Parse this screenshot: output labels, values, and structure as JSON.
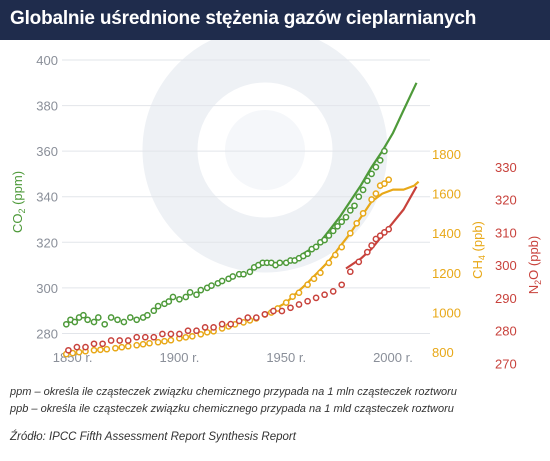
{
  "title": "Globalnie uśrednione stężenia gazów cieplarnianych",
  "notes": {
    "ppm": "ppm – określa ile cząsteczek związku chemicznego przypada na 1 mln cząsteczek roztworu",
    "ppb": "ppb – określa ile cząsteczek związku chemicznego przypada na 1 mld cząsteczek roztworu"
  },
  "source": "Źródło: IPCC Fifth Assessment Report Synthesis Report",
  "colors": {
    "co2": "#4e9a3a",
    "ch4": "#e8a818",
    "n2o": "#c8423c",
    "title_bg": "#1f2c4c"
  },
  "chart_data": {
    "type": "scatter",
    "title": "Globalnie uśrednione stężenia gazów cieplarnianych",
    "x_ticks": [
      "1850 r.",
      "1900 r.",
      "1950 r.",
      "2000 r."
    ],
    "x_tick_values": [
      1850,
      1900,
      1950,
      2000
    ],
    "xlim": [
      1845,
      2015
    ],
    "axes": {
      "co2": {
        "label_main": "CO",
        "label_sub": "2",
        "label_unit": " (ppm)",
        "ylim": [
          278,
          400
        ],
        "ticks": [
          280,
          300,
          320,
          340,
          360,
          380,
          400
        ],
        "side": "left"
      },
      "ch4": {
        "label_main": "CH",
        "label_sub": "4",
        "label_unit": " (ppb)",
        "ylim": [
          720,
          1850
        ],
        "ticks": [
          800,
          1000,
          1200,
          1400,
          1600,
          1800
        ],
        "side": "right"
      },
      "n2o": {
        "label_main": "N",
        "label_sub": "2",
        "label_mid": "O",
        "label_unit": " (ppb)",
        "ylim": [
          268,
          337
        ],
        "ticks": [
          270,
          280,
          290,
          300,
          310,
          320,
          330
        ],
        "side": "right"
      }
    },
    "series": [
      {
        "key": "co2",
        "points": [
          [
            1847,
            284
          ],
          [
            1849,
            286
          ],
          [
            1851,
            285
          ],
          [
            1853,
            287
          ],
          [
            1855,
            288
          ],
          [
            1857,
            286
          ],
          [
            1860,
            285
          ],
          [
            1862,
            287
          ],
          [
            1865,
            284
          ],
          [
            1868,
            287
          ],
          [
            1871,
            286
          ],
          [
            1874,
            285
          ],
          [
            1877,
            287
          ],
          [
            1880,
            286
          ],
          [
            1883,
            287
          ],
          [
            1885,
            288
          ],
          [
            1888,
            290
          ],
          [
            1890,
            292
          ],
          [
            1893,
            293
          ],
          [
            1895,
            294
          ],
          [
            1897,
            296
          ],
          [
            1900,
            295
          ],
          [
            1903,
            296
          ],
          [
            1905,
            298
          ],
          [
            1908,
            297
          ],
          [
            1910,
            299
          ],
          [
            1913,
            300
          ],
          [
            1915,
            301
          ],
          [
            1918,
            302
          ],
          [
            1920,
            303
          ],
          [
            1923,
            304
          ],
          [
            1925,
            305
          ],
          [
            1928,
            306
          ],
          [
            1930,
            306
          ],
          [
            1933,
            307
          ],
          [
            1935,
            309
          ],
          [
            1937,
            310
          ],
          [
            1939,
            311
          ],
          [
            1941,
            311
          ],
          [
            1943,
            311
          ],
          [
            1945,
            310
          ],
          [
            1947,
            311
          ],
          [
            1950,
            311
          ],
          [
            1952,
            312
          ],
          [
            1954,
            312
          ],
          [
            1956,
            313
          ],
          [
            1958,
            314
          ],
          [
            1960,
            315
          ],
          [
            1962,
            317
          ],
          [
            1964,
            318
          ],
          [
            1966,
            320
          ],
          [
            1968,
            321
          ],
          [
            1970,
            323
          ],
          [
            1972,
            325
          ],
          [
            1974,
            327
          ],
          [
            1976,
            329
          ],
          [
            1978,
            331
          ],
          [
            1980,
            334
          ],
          [
            1982,
            336
          ],
          [
            1984,
            340
          ],
          [
            1986,
            343
          ],
          [
            1988,
            347
          ],
          [
            1990,
            350
          ],
          [
            1992,
            353
          ],
          [
            1994,
            356
          ],
          [
            1996,
            360
          ]
        ],
        "line": [
          [
            1958,
            315
          ],
          [
            1965,
            319
          ],
          [
            1970,
            325
          ],
          [
            1975,
            331
          ],
          [
            1980,
            338
          ],
          [
            1985,
            345
          ],
          [
            1990,
            353
          ],
          [
            1995,
            360
          ],
          [
            2000,
            368
          ],
          [
            2005,
            378
          ],
          [
            2011,
            390
          ]
        ]
      },
      {
        "key": "ch4",
        "points": [
          [
            1847,
            790
          ],
          [
            1850,
            795
          ],
          [
            1853,
            800
          ],
          [
            1856,
            805
          ],
          [
            1860,
            810
          ],
          [
            1863,
            812
          ],
          [
            1866,
            815
          ],
          [
            1870,
            820
          ],
          [
            1873,
            825
          ],
          [
            1876,
            830
          ],
          [
            1880,
            835
          ],
          [
            1883,
            840
          ],
          [
            1886,
            845
          ],
          [
            1890,
            850
          ],
          [
            1893,
            855
          ],
          [
            1896,
            860
          ],
          [
            1900,
            870
          ],
          [
            1903,
            875
          ],
          [
            1906,
            880
          ],
          [
            1910,
            890
          ],
          [
            1913,
            900
          ],
          [
            1916,
            905
          ],
          [
            1920,
            920
          ],
          [
            1923,
            930
          ],
          [
            1926,
            940
          ],
          [
            1930,
            950
          ],
          [
            1933,
            960
          ],
          [
            1936,
            970
          ],
          [
            1940,
            990
          ],
          [
            1943,
            1000
          ],
          [
            1946,
            1020
          ],
          [
            1950,
            1050
          ],
          [
            1953,
            1080
          ],
          [
            1956,
            1100
          ],
          [
            1960,
            1140
          ],
          [
            1963,
            1170
          ],
          [
            1966,
            1200
          ],
          [
            1970,
            1250
          ],
          [
            1973,
            1290
          ],
          [
            1976,
            1330
          ],
          [
            1980,
            1400
          ],
          [
            1983,
            1450
          ],
          [
            1986,
            1500
          ],
          [
            1990,
            1570
          ],
          [
            1992,
            1600
          ],
          [
            1994,
            1640
          ],
          [
            1996,
            1650
          ],
          [
            1998,
            1670
          ]
        ],
        "line": [
          [
            1940,
            990
          ],
          [
            1950,
            1050
          ],
          [
            1960,
            1150
          ],
          [
            1970,
            1260
          ],
          [
            1980,
            1400
          ],
          [
            1985,
            1480
          ],
          [
            1990,
            1560
          ],
          [
            1995,
            1600
          ],
          [
            2000,
            1620
          ],
          [
            2005,
            1620
          ],
          [
            2010,
            1640
          ],
          [
            2012,
            1660
          ]
        ]
      },
      {
        "key": "n2o",
        "points": [
          [
            1848,
            274
          ],
          [
            1852,
            275
          ],
          [
            1856,
            275
          ],
          [
            1860,
            276
          ],
          [
            1864,
            276
          ],
          [
            1868,
            277
          ],
          [
            1872,
            277
          ],
          [
            1876,
            277
          ],
          [
            1880,
            278
          ],
          [
            1884,
            278
          ],
          [
            1888,
            278
          ],
          [
            1892,
            279
          ],
          [
            1896,
            279
          ],
          [
            1900,
            279
          ],
          [
            1904,
            280
          ],
          [
            1908,
            280
          ],
          [
            1912,
            281
          ],
          [
            1916,
            281
          ],
          [
            1920,
            282
          ],
          [
            1924,
            282
          ],
          [
            1928,
            283
          ],
          [
            1932,
            284
          ],
          [
            1936,
            284
          ],
          [
            1940,
            285
          ],
          [
            1944,
            286
          ],
          [
            1948,
            286
          ],
          [
            1952,
            287
          ],
          [
            1956,
            288
          ],
          [
            1960,
            289
          ],
          [
            1964,
            290
          ],
          [
            1968,
            291
          ],
          [
            1972,
            292
          ],
          [
            1976,
            294
          ],
          [
            1980,
            298
          ],
          [
            1984,
            301
          ],
          [
            1988,
            304
          ],
          [
            1990,
            306
          ],
          [
            1992,
            308
          ],
          [
            1994,
            309
          ],
          [
            1996,
            310
          ],
          [
            1998,
            311
          ]
        ],
        "line": [
          [
            1978,
            299
          ],
          [
            1985,
            302
          ],
          [
            1990,
            305
          ],
          [
            1995,
            309
          ],
          [
            2000,
            313
          ],
          [
            2005,
            317
          ],
          [
            2011,
            324
          ]
        ]
      }
    ]
  }
}
